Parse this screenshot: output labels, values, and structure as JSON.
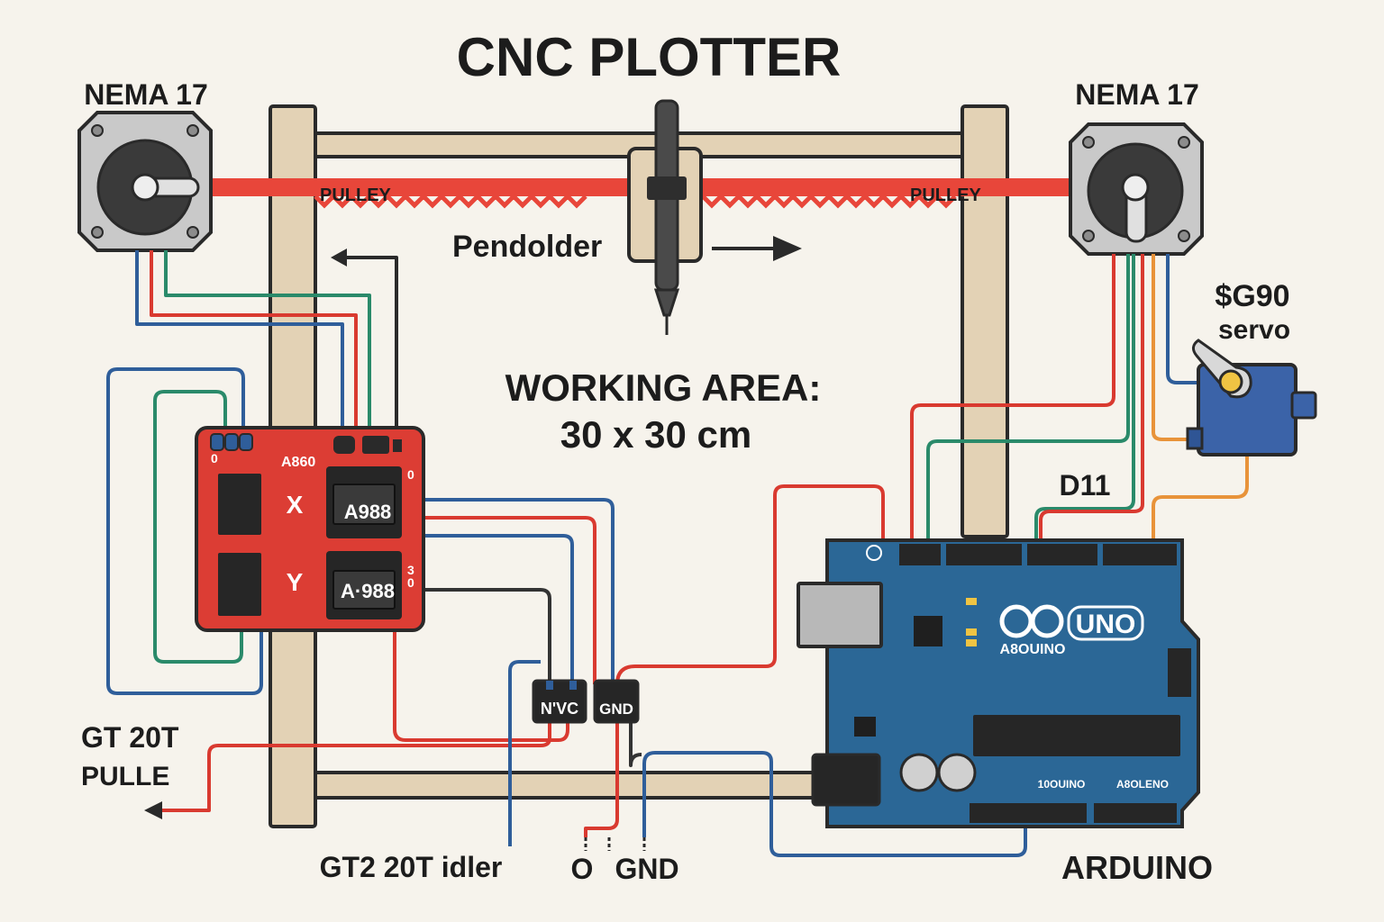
{
  "title": "CNC PLOTTER",
  "motors": {
    "left_label": "NEMA 17",
    "right_label": "NEMA 17"
  },
  "belt": {
    "pulley_left": "PULLEY",
    "pulley_right": "PULLEY"
  },
  "pen_holder_label": "Pendolder",
  "working_area": {
    "line1": "WORKING AREA:",
    "line2": "30 x 30 cm"
  },
  "servo": {
    "line1": "$G90",
    "line2": "servo"
  },
  "driver_board": {
    "label": "A860",
    "x_axis": "X",
    "y_axis": "Y",
    "driver_x": "A988",
    "driver_y": "A·988",
    "pin_top": "0",
    "pin_mid": "3",
    "pin_low": "0",
    "pin_left": "0"
  },
  "power_terminals": {
    "vcc": "N'VC",
    "gnd": "GND"
  },
  "arduino": {
    "logo": "UNO",
    "brand": "A8OUINO",
    "pin_label": "D11",
    "title": "ARDUINO",
    "bottom_left": "10OUINO",
    "bottom_right": "A8OLENO"
  },
  "bottom_labels": {
    "gt_pulley_line1": "GT 20T",
    "gt_pulley_line2": "PULLE",
    "idler": "GT2 20T idler",
    "o": "O",
    "gnd": "GND"
  },
  "colors": {
    "frame": "#e3d2b5",
    "frame_stroke": "#2a2a2a",
    "belt": "#e8463a",
    "motor_body": "#c9c9c9",
    "driver_board": "#dc3d34",
    "arduino": "#2b6796",
    "servo": "#3b63a8",
    "wire_red": "#d93a30",
    "wire_blue": "#2f5e9a",
    "wire_green": "#2a8a6a",
    "wire_orange": "#e8933a",
    "wire_dark": "#333333"
  }
}
